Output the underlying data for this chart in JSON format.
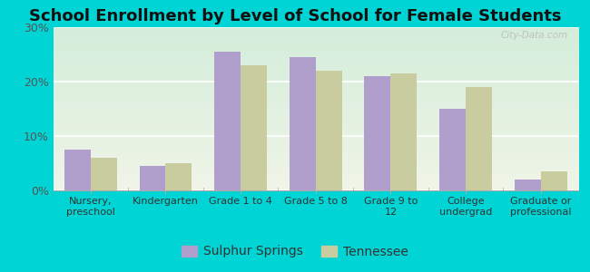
{
  "title": "School Enrollment by Level of School for Female Students",
  "categories": [
    "Nursery,\npreschool",
    "Kindergarten",
    "Grade 1 to 4",
    "Grade 5 to 8",
    "Grade 9 to\n12",
    "College\nundergrad",
    "Graduate or\nprofessional"
  ],
  "sulphur_springs": [
    7.5,
    4.5,
    25.5,
    24.5,
    21.0,
    15.0,
    2.0
  ],
  "tennessee": [
    6.0,
    5.0,
    23.0,
    22.0,
    21.5,
    19.0,
    3.5
  ],
  "sulphur_color": "#b09fcc",
  "tennessee_color": "#c8cc9f",
  "background_outer": "#00d4d4",
  "background_inner": "#e8f2e8",
  "ylim": [
    0,
    30
  ],
  "yticks": [
    0,
    10,
    20,
    30
  ],
  "ytick_labels": [
    "0%",
    "10%",
    "20%",
    "30%"
  ],
  "legend_label_1": "Sulphur Springs",
  "legend_label_2": "Tennessee",
  "bar_width": 0.35,
  "title_fontsize": 13,
  "watermark": "City-Data.com"
}
